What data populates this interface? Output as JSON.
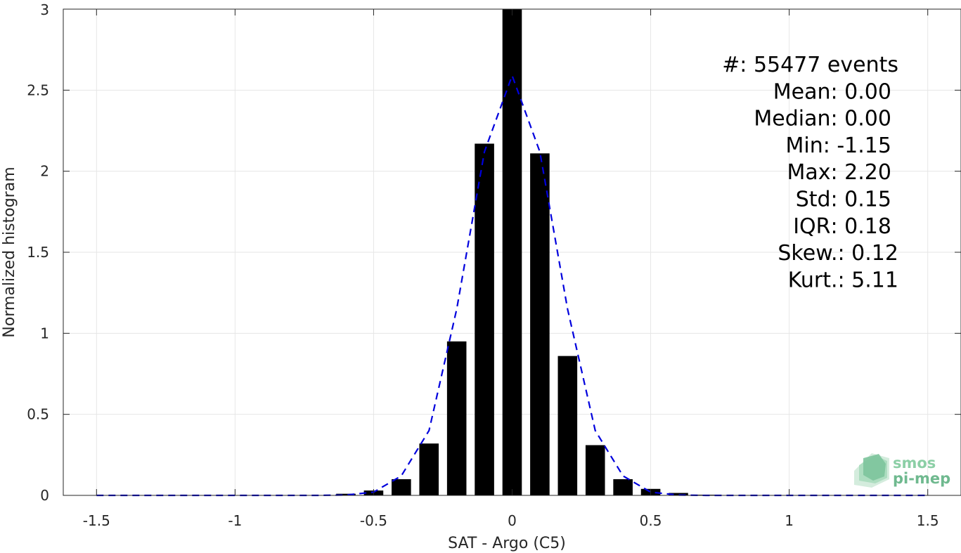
{
  "chart_data": {
    "type": "bar",
    "title": "",
    "xlabel": "SAT - Argo (C5)",
    "ylabel": "Normalized histogram",
    "xlim": [
      -1.62,
      1.62
    ],
    "ylim": [
      0,
      3
    ],
    "xticks": [
      -1.5,
      -1,
      -0.5,
      0,
      0.5,
      1,
      1.5
    ],
    "xtick_labels": [
      "-1.5",
      "-1",
      "-0.5",
      "0",
      "0.5",
      "1",
      "1.5"
    ],
    "yticks": [
      0,
      0.5,
      1,
      1.5,
      2,
      2.5,
      3
    ],
    "ytick_labels": [
      "0",
      "0.5",
      "1",
      "1.5",
      "2",
      "2.5",
      "3"
    ],
    "grid": true,
    "bar_color": "#000000",
    "bar_width": 0.07,
    "bars": {
      "x": [
        -1.5,
        -1.4,
        -1.3,
        -1.2,
        -1.1,
        -1.0,
        -0.9,
        -0.8,
        -0.7,
        -0.6,
        -0.5,
        -0.4,
        -0.3,
        -0.2,
        -0.1,
        0.0,
        0.1,
        0.2,
        0.3,
        0.4,
        0.5,
        0.6,
        0.7,
        0.8,
        0.9,
        1.0,
        1.1,
        1.2,
        1.3,
        1.4,
        1.5
      ],
      "y": [
        0,
        0,
        0,
        0,
        0,
        0,
        0,
        0,
        0.002,
        0.01,
        0.03,
        0.1,
        0.32,
        0.95,
        2.17,
        3.0,
        2.11,
        0.86,
        0.31,
        0.1,
        0.04,
        0.015,
        0.004,
        0,
        0,
        0,
        0,
        0,
        0,
        0,
        0
      ]
    },
    "fit_curve": {
      "name": "",
      "color": "#0000dd",
      "style": "dashed",
      "x": [
        -1.5,
        -1.0,
        -0.7,
        -0.6,
        -0.5,
        -0.4,
        -0.3,
        -0.2,
        -0.1,
        0.0,
        0.1,
        0.2,
        0.3,
        0.4,
        0.5,
        0.6,
        0.7,
        1.0,
        1.5
      ],
      "y": [
        0,
        0,
        0,
        0.002,
        0.02,
        0.12,
        0.4,
        1.15,
        2.12,
        2.59,
        2.12,
        1.15,
        0.4,
        0.12,
        0.02,
        0.002,
        0,
        0,
        0
      ]
    },
    "stats": [
      {
        "label": "#  ",
        "value": ": 55477 events"
      },
      {
        "label": "Mean ",
        "value": ": 0.00"
      },
      {
        "label": "Median ",
        "value": ": 0.00"
      },
      {
        "label": "Min ",
        "value": ": -1.15"
      },
      {
        "label": "Max ",
        "value": ": 2.20"
      },
      {
        "label": "Std ",
        "value": ": 0.15"
      },
      {
        "label": "IQR ",
        "value": ": 0.18"
      },
      {
        "label": "Skew. ",
        "value": ": 0.12"
      },
      {
        "label": "Kurt. ",
        "value": ": 5.11"
      }
    ]
  },
  "logo": {
    "line1": "smos",
    "line2": "pi-mep",
    "color1": "#8ccfa6",
    "color2": "#6fb98f"
  }
}
